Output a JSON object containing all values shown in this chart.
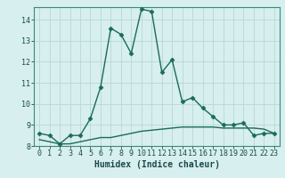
{
  "xlabel": "Humidex (Indice chaleur)",
  "background_color": "#d7efee",
  "grid_color": "#b8d8d5",
  "line_color": "#1a6b5a",
  "line1_x": [
    0,
    1,
    2,
    3,
    4,
    5,
    6,
    7,
    8,
    9,
    10,
    11,
    12,
    13,
    14,
    15,
    16,
    17,
    18,
    19,
    20,
    21,
    22,
    23
  ],
  "line1_y": [
    8.6,
    8.5,
    8.1,
    8.5,
    8.5,
    9.3,
    10.8,
    13.6,
    13.3,
    12.4,
    14.5,
    14.4,
    11.5,
    12.1,
    10.1,
    10.3,
    9.8,
    9.4,
    9.0,
    9.0,
    9.1,
    8.5,
    8.6,
    8.6
  ],
  "line2_x": [
    0,
    1,
    2,
    3,
    4,
    5,
    6,
    7,
    8,
    9,
    10,
    11,
    12,
    13,
    14,
    15,
    16,
    17,
    18,
    19,
    20,
    21,
    22,
    23
  ],
  "line2_y": [
    8.3,
    8.2,
    8.1,
    8.1,
    8.2,
    8.3,
    8.4,
    8.4,
    8.5,
    8.6,
    8.7,
    8.75,
    8.8,
    8.85,
    8.9,
    8.9,
    8.9,
    8.9,
    8.85,
    8.85,
    8.85,
    8.85,
    8.8,
    8.6
  ],
  "ylim": [
    8.0,
    14.6
  ],
  "xlim": [
    -0.5,
    23.5
  ],
  "yticks": [
    8,
    9,
    10,
    11,
    12,
    13,
    14
  ],
  "xticks": [
    0,
    1,
    2,
    3,
    4,
    5,
    6,
    7,
    8,
    9,
    10,
    11,
    12,
    13,
    14,
    15,
    16,
    17,
    18,
    19,
    20,
    21,
    22,
    23
  ],
  "marker": "D",
  "markersize": 2.5,
  "linewidth": 1.0,
  "tick_fontsize": 6,
  "xlabel_fontsize": 7
}
